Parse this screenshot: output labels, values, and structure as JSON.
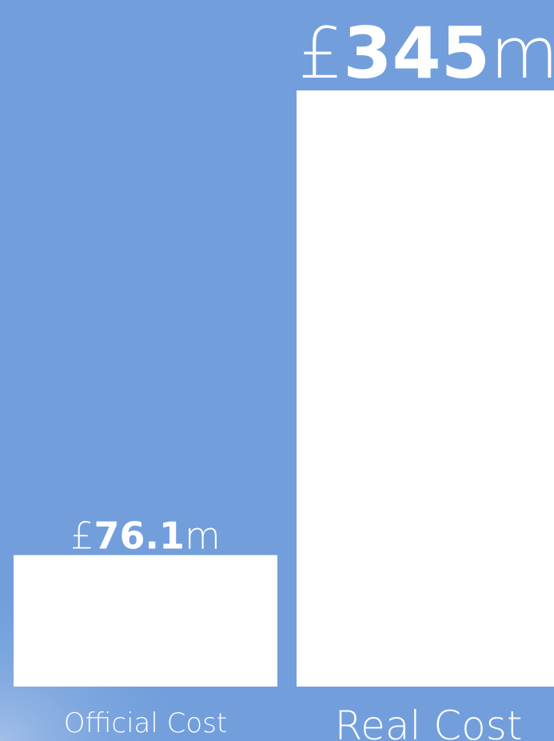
{
  "chart_data": {
    "type": "bar",
    "categories": [
      "Official Cost",
      "Real Cost"
    ],
    "values": [
      76.1,
      345
    ],
    "value_labels": [
      "£76.1m",
      "£345m"
    ],
    "color": "#ffffff"
  }
}
